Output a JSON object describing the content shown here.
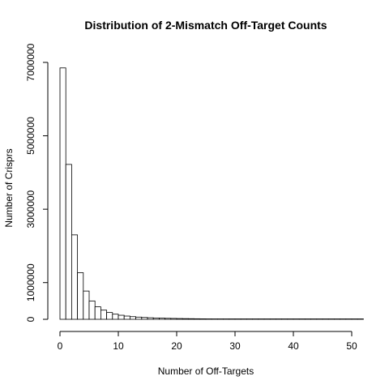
{
  "chart_data": {
    "type": "bar",
    "title": "Distribution of 2-Mismatch Off-Target Counts",
    "xlabel": "Number of Off-Targets",
    "ylabel": "Number of Crisprs",
    "xlim": [
      0,
      52
    ],
    "ylim": [
      0,
      7000000
    ],
    "x_ticks": [
      "0",
      "10",
      "20",
      "30",
      "40",
      "50"
    ],
    "y_ticks": [
      "0",
      "1000000",
      "3000000",
      "5000000",
      "7000000"
    ],
    "x": [
      0,
      1,
      2,
      3,
      4,
      5,
      6,
      7,
      8,
      9,
      10,
      11,
      12,
      13,
      14,
      15,
      16,
      17,
      18,
      19,
      20,
      21,
      22,
      23,
      24,
      25,
      26,
      27,
      28,
      29,
      30,
      31,
      32,
      33,
      34,
      35,
      36,
      37,
      38,
      39,
      40,
      41,
      42,
      43,
      44,
      45,
      46,
      47,
      48,
      49,
      50,
      51
    ],
    "values": [
      6850000,
      4220000,
      2300000,
      1270000,
      770000,
      500000,
      340000,
      250000,
      185000,
      140000,
      110000,
      88000,
      72000,
      60000,
      50000,
      42000,
      36000,
      31000,
      27000,
      24000,
      21000,
      18500,
      16500,
      14500,
      13000,
      11500,
      10300,
      9300,
      8400,
      7600,
      6900,
      6300,
      5700,
      5200,
      4800,
      4400,
      4000,
      3700,
      3400,
      3100,
      2900,
      2700,
      2500,
      2300,
      2100,
      2000,
      1800,
      1700,
      1600,
      1500,
      1400,
      1300
    ]
  }
}
